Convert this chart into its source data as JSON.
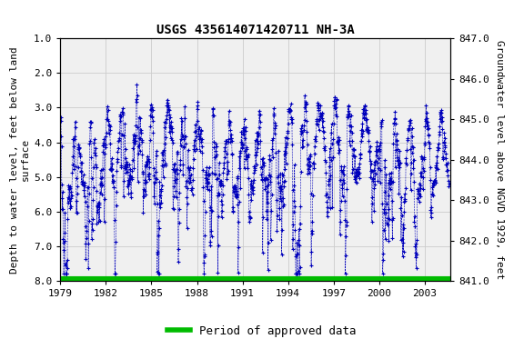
{
  "title": "USGS 435614071420711 NH-3A",
  "ylabel_left": "Depth to water level, feet below land\nsurface",
  "ylabel_right": "Groundwater level above NGVD 1929, feet",
  "ylim_left": [
    8.0,
    1.0
  ],
  "ylim_right": [
    841.0,
    847.0
  ],
  "xlim": [
    1979,
    2004.7
  ],
  "yticks_left": [
    1.0,
    2.0,
    3.0,
    4.0,
    5.0,
    6.0,
    7.0,
    8.0
  ],
  "yticks_right": [
    841.0,
    842.0,
    843.0,
    844.0,
    845.0,
    846.0,
    847.0
  ],
  "xticks": [
    1979,
    1982,
    1985,
    1988,
    1991,
    1994,
    1997,
    2000,
    2003
  ],
  "data_color": "#0000BB",
  "approved_color": "#00BB00",
  "approved_linewidth": 8,
  "background_color": "#ffffff",
  "plot_bg_color": "#f0f0f0",
  "grid_color": "#cccccc",
  "title_fontsize": 10,
  "axis_fontsize": 8,
  "tick_fontsize": 8,
  "legend_fontsize": 9,
  "seed": 123
}
